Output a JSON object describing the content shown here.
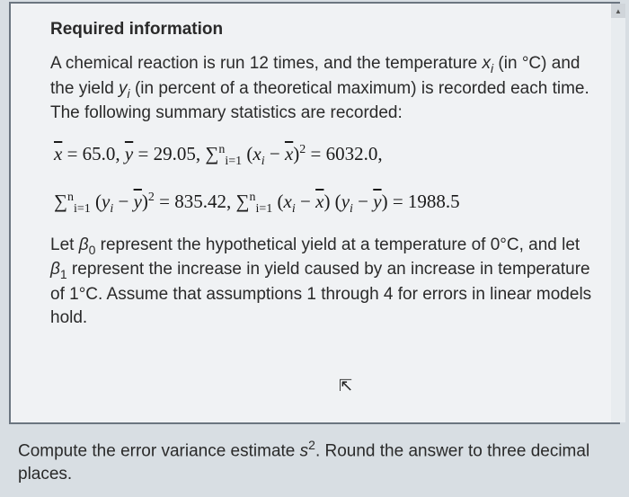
{
  "heading": "Required information",
  "intro": {
    "part1": "A chemical reaction is run 12 times, and the temperature ",
    "xi": "x",
    "xi_sub": "i",
    "part2": " (in °C) and the yield ",
    "yi": "y",
    "yi_sub": "i",
    "part3": " (in percent of a theoretical maximum) is recorded each time. The following summary statistics are recorded:"
  },
  "math": {
    "xbar_label": "x",
    "xbar_val": " = 65.0, ",
    "ybar_label": "y",
    "ybar_val": " = 29.05, ",
    "sum_xx": "∑",
    "sum_xx_sub": "i=1",
    "sum_xx_sup": "n",
    "sum_xx_body1": " (",
    "sum_xx_xi": "x",
    "sum_xx_xi_sub": "i",
    "sum_xx_body2": " − ",
    "sum_xx_xbar": "x",
    "sum_xx_body3": ")",
    "sum_xx_pow": "2",
    "sum_xx_val": " = 6032.0,",
    "sum_yy": "∑",
    "sum_yy_sub": "i=1",
    "sum_yy_sup": "n",
    "sum_yy_body1": " (",
    "sum_yy_yi": "y",
    "sum_yy_yi_sub": "i",
    "sum_yy_body2": " − ",
    "sum_yy_ybar": "y",
    "sum_yy_body3": ")",
    "sum_yy_pow": "2",
    "sum_yy_val": " = 835.42, ",
    "sum_xy": "∑",
    "sum_xy_sub": "i=1",
    "sum_xy_sup": "n",
    "sum_xy_body1": " (",
    "sum_xy_xi": "x",
    "sum_xy_xi_sub": "i",
    "sum_xy_body2": " − ",
    "sum_xy_xbar": "x",
    "sum_xy_body3": ") (",
    "sum_xy_yi": "y",
    "sum_xy_yi_sub": "i",
    "sum_xy_body4": " − ",
    "sum_xy_ybar": "y",
    "sum_xy_body5": ") = 1988.5"
  },
  "let": {
    "part1": "Let ",
    "b0": "β",
    "b0_sub": "0",
    "part2": " represent the hypothetical yield at a temperature of 0°C, and let ",
    "b1": "β",
    "b1_sub": "1",
    "part3": " represent the increase in yield caused by an increase in temperature of 1°C. Assume that assumptions 1 through 4 for errors in linear models hold."
  },
  "bottom": {
    "part1": "Compute the error variance estimate ",
    "s": "s",
    "s_sup": "2",
    "part2": ". Round the answer to three decimal places."
  },
  "colors": {
    "background": "#d8dee3",
    "box_bg": "#f0f2f4",
    "box_border": "#6b7580",
    "text": "#2a2a2a"
  }
}
